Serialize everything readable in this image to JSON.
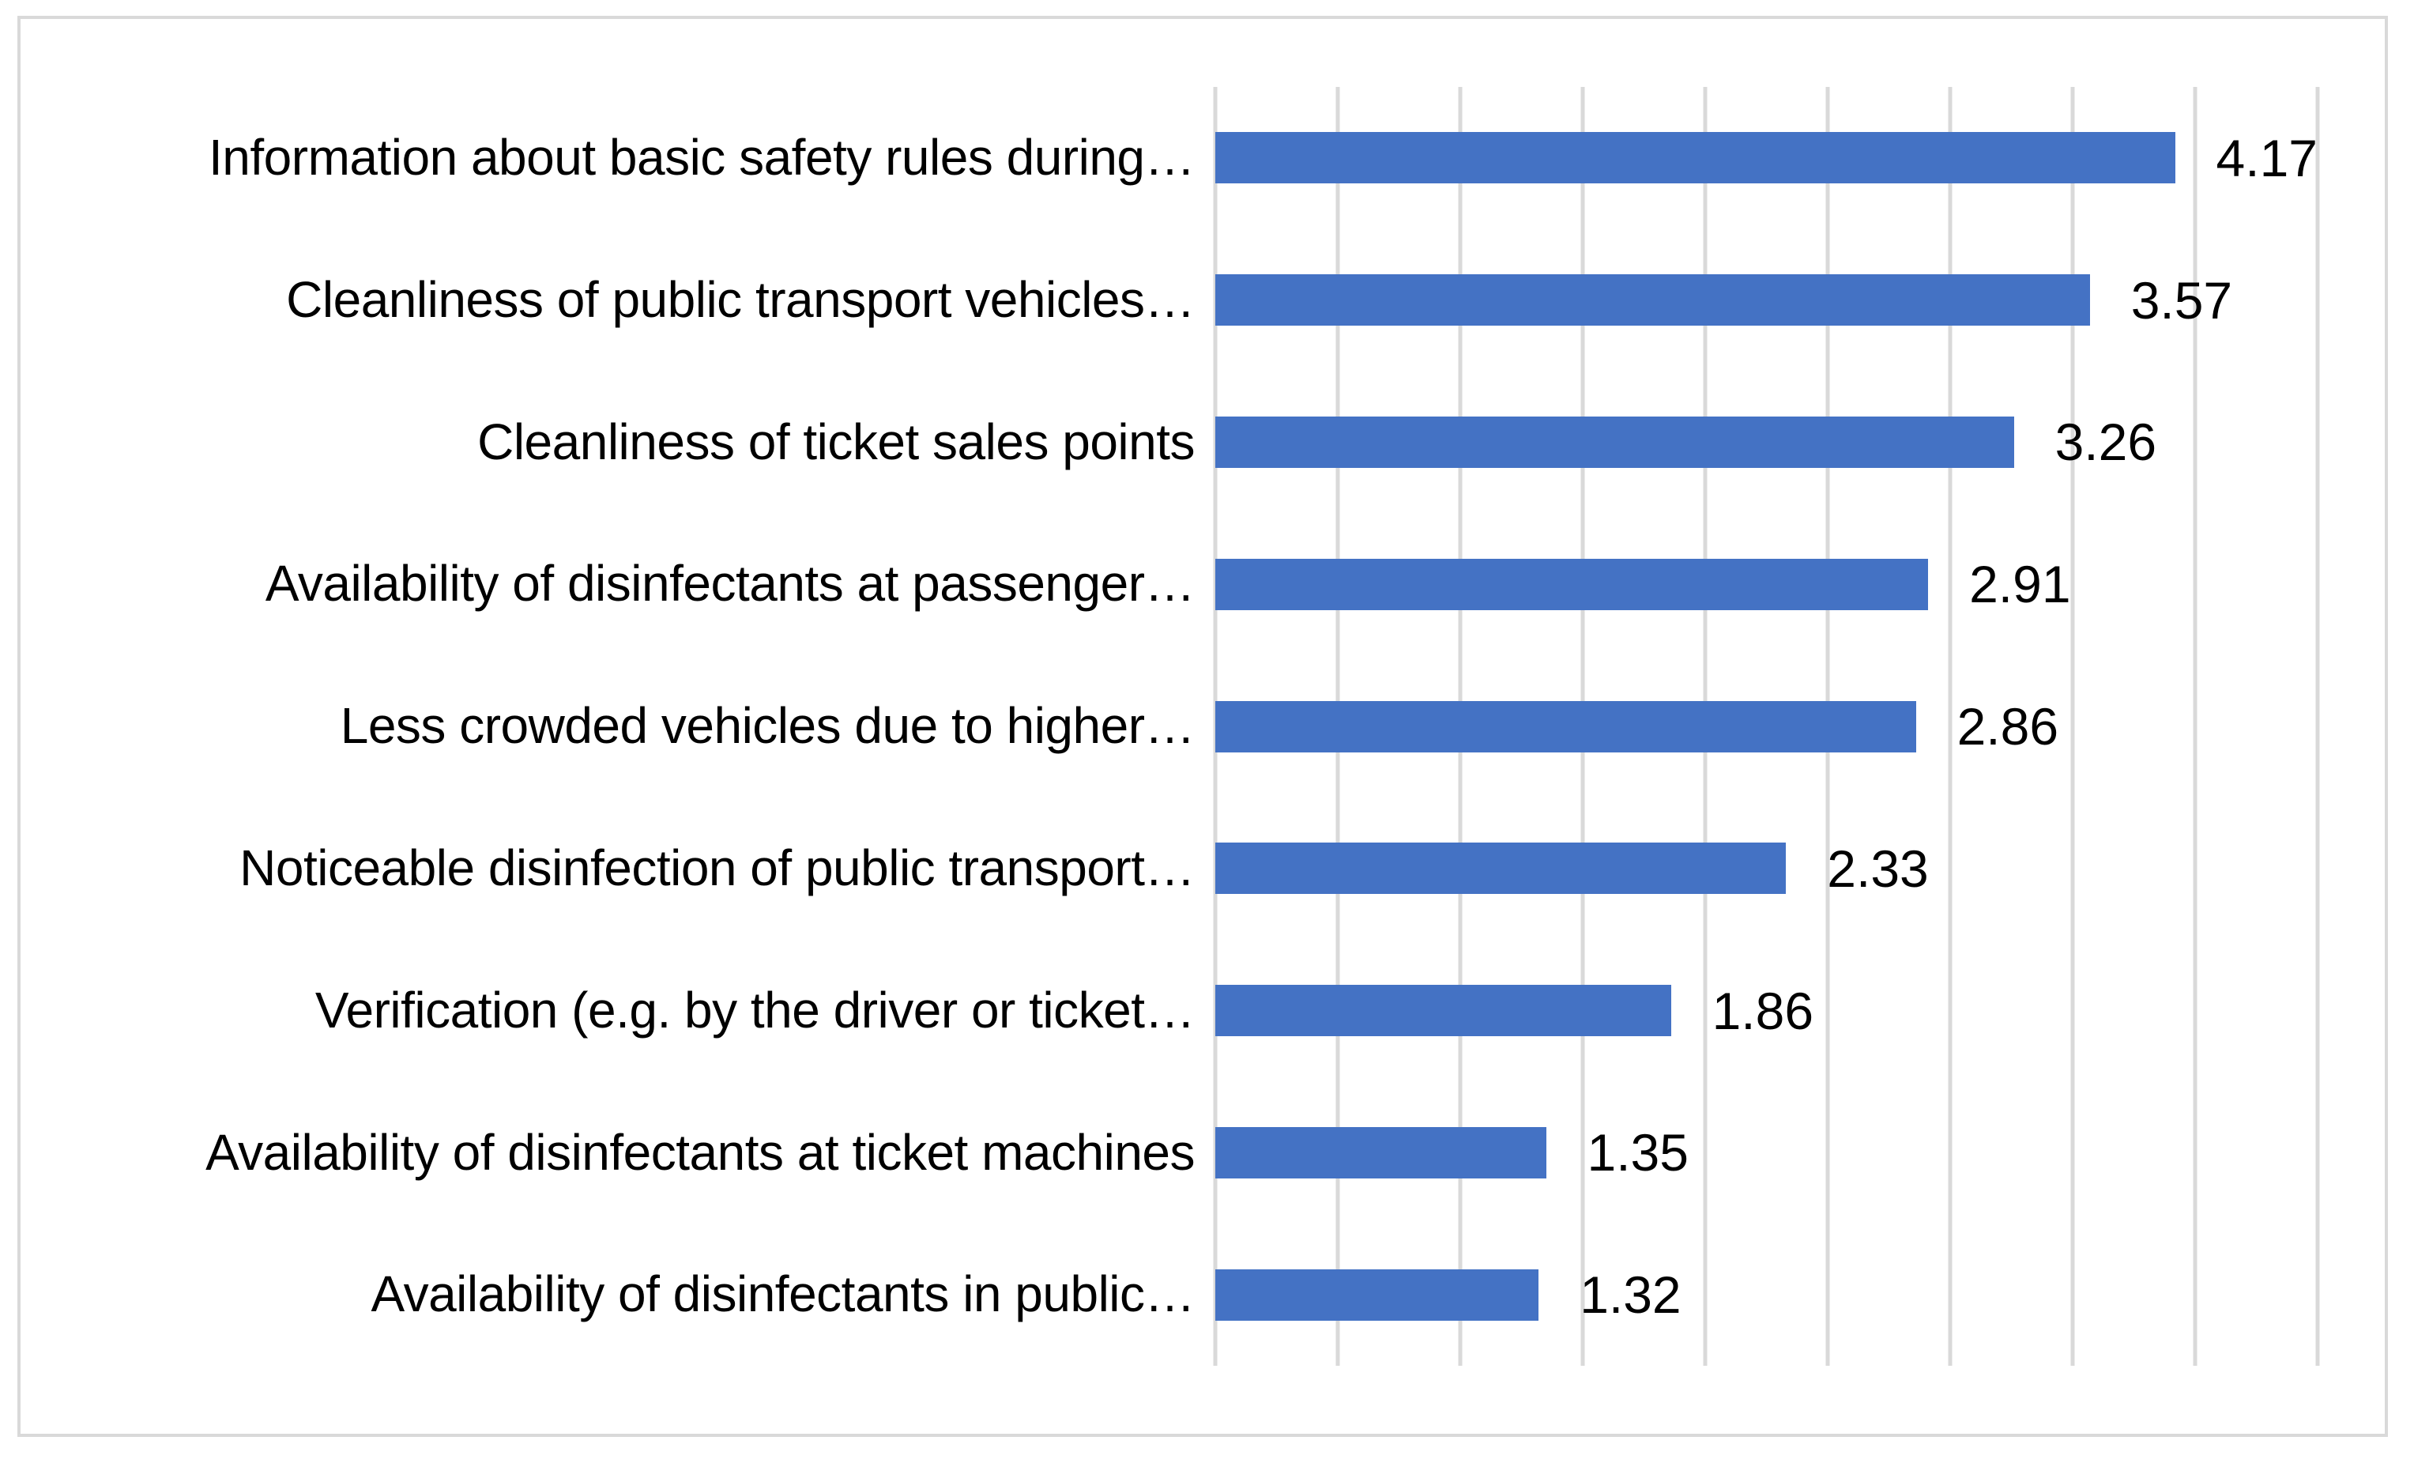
{
  "chart_data": {
    "type": "bar",
    "orientation": "horizontal",
    "title": "",
    "categories": [
      "Information about basic safety rules during…",
      "Cleanliness of public transport vehicles…",
      "Cleanliness of ticket sales points",
      "Availability of disinfectants at passenger…",
      "Less crowded vehicles due to higher…",
      "Noticeable disinfection of public transport…",
      "Verification (e.g. by the driver or ticket…",
      "Availability of disinfectants at ticket machines",
      "Availability of disinfectants in public…"
    ],
    "values": [
      4.17,
      3.57,
      3.26,
      2.91,
      2.86,
      2.33,
      1.86,
      1.35,
      1.32
    ],
    "value_labels": [
      "4.17",
      "3.57",
      "3.26",
      "2.91",
      "2.86",
      "2.33",
      "1.86",
      "1.35",
      "1.32"
    ],
    "axis": {
      "min": 0,
      "max": 4.5,
      "gridline_step": 0.5,
      "tick_labels_visible": false
    },
    "grid": "vertical",
    "legend_position": "none",
    "colors": {
      "bar": "#4472C4",
      "gridline": "#D9D9D9",
      "frame_border": "#D9D9D9",
      "label_text": "#000000",
      "background": "#FFFFFF"
    }
  }
}
